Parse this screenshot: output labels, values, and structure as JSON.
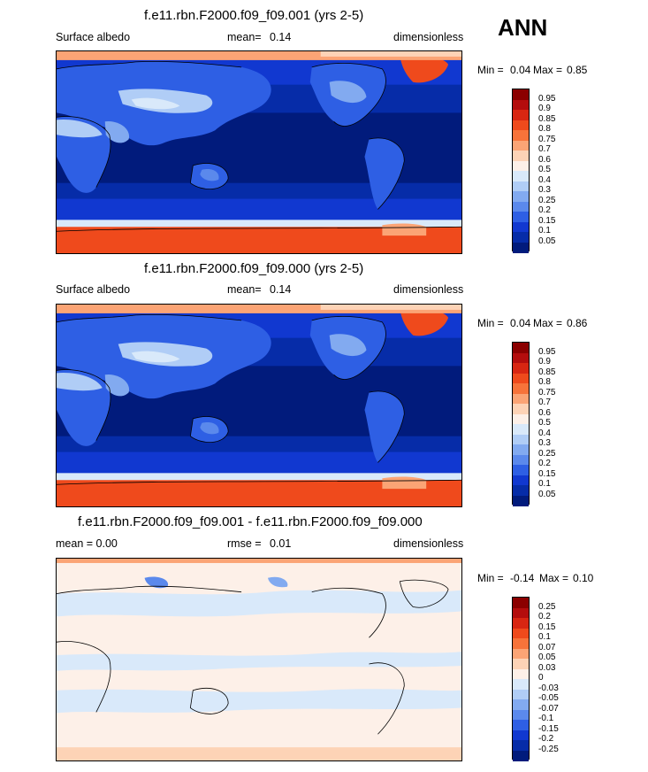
{
  "season": "ANN",
  "panels": [
    {
      "title": "f.e11.rbn.F2000.f09_f09.001 (yrs 2-5)",
      "left_label": "Surface albedo",
      "mean_label": "mean=",
      "mean_value": "0.14",
      "units": "dimensionless",
      "min_label": "Min =",
      "min_value": "0.04",
      "max_label": "Max =",
      "max_value": "0.85",
      "levels": [
        "0.95",
        "0.9",
        "0.85",
        "0.8",
        "0.75",
        "0.7",
        "0.6",
        "0.5",
        "0.4",
        "0.3",
        "0.25",
        "0.2",
        "0.15",
        "0.1",
        "0.05"
      ],
      "colors": [
        "#8b0000",
        "#b40d0d",
        "#d82612",
        "#ef4a1c",
        "#f7733a",
        "#fba475",
        "#fdd3b6",
        "#fdf0e8",
        "#d9e9fa",
        "#b0cdf6",
        "#82aaf0",
        "#5b89ec",
        "#2e5fe4",
        "#1138d0",
        "#062ca8",
        "#011b7c"
      ]
    },
    {
      "title": "f.e11.rbn.F2000.f09_f09.000 (yrs 2-5)",
      "left_label": "Surface albedo",
      "mean_label": "mean=",
      "mean_value": "0.14",
      "units": "dimensionless",
      "min_label": "Min =",
      "min_value": "0.04",
      "max_label": "Max =",
      "max_value": "0.86",
      "levels": [
        "0.95",
        "0.9",
        "0.85",
        "0.8",
        "0.75",
        "0.7",
        "0.6",
        "0.5",
        "0.4",
        "0.3",
        "0.25",
        "0.2",
        "0.15",
        "0.1",
        "0.05"
      ],
      "colors": [
        "#8b0000",
        "#b40d0d",
        "#d82612",
        "#ef4a1c",
        "#f7733a",
        "#fba475",
        "#fdd3b6",
        "#fdf0e8",
        "#d9e9fa",
        "#b0cdf6",
        "#82aaf0",
        "#5b89ec",
        "#2e5fe4",
        "#1138d0",
        "#062ca8",
        "#011b7c"
      ]
    },
    {
      "title": "f.e11.rbn.F2000.f09_f09.001 - f.e11.rbn.F2000.f09_f09.000",
      "left_label": "mean =   0.00",
      "mean_label": "rmse =",
      "mean_value": "0.01",
      "units": "dimensionless",
      "min_label": "Min =",
      "min_value": "-0.14",
      "max_label": "Max =",
      "max_value": "0.10",
      "levels": [
        "0.25",
        "0.2",
        "0.15",
        "0.1",
        "0.07",
        "0.05",
        "0.03",
        "0",
        "-0.03",
        "-0.05",
        "-0.07",
        "-0.1",
        "-0.15",
        "-0.2",
        "-0.25"
      ],
      "colors": [
        "#8b0000",
        "#b40d0d",
        "#d82612",
        "#ef4a1c",
        "#f7733a",
        "#fba475",
        "#fdd3b6",
        "#fdf0e8",
        "#d9e9fa",
        "#b0cdf6",
        "#82aaf0",
        "#5b89ec",
        "#2e5fe4",
        "#1138d0",
        "#062ca8",
        "#011b7c"
      ]
    }
  ]
}
